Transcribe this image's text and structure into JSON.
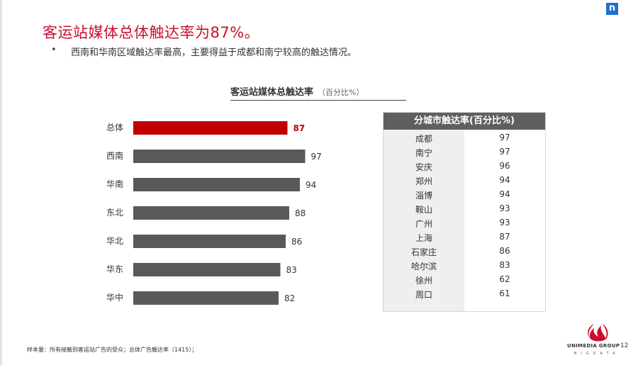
{
  "brand_badge": "n",
  "title": "客运站媒体总体触达率为87%。",
  "bullet_marker": "•",
  "bullet_text": "西南和华南区域触达率最高，主要得益于成都和南宁较高的触达情况。",
  "footnote": "样本量：所有接触到客运站广告的受众；总体广告触达率（1415）；",
  "logo": {
    "name": "UNIMEDIA GROUP",
    "sub": "BIGDATA"
  },
  "page_number": "12",
  "colors": {
    "highlight": "#c00000",
    "bar": "#595959",
    "title": "#c8102e"
  },
  "chart_data": [
    {
      "type": "bar",
      "orientation": "horizontal",
      "title": "客运站媒体总触达率",
      "unit": "（百分比%）",
      "categories": [
        "总体",
        "西南",
        "华南",
        "东北",
        "华北",
        "华东",
        "华中"
      ],
      "values": [
        87,
        97,
        94,
        88,
        86,
        83,
        82
      ],
      "highlight_index": 0,
      "grid": false
    },
    {
      "type": "table",
      "title": "分城市触达率(百分比%)",
      "rows": [
        {
          "city": "成都",
          "value": "97"
        },
        {
          "city": "南宁",
          "value": "97"
        },
        {
          "city": "安庆",
          "value": "96"
        },
        {
          "city": "郑州",
          "value": "94"
        },
        {
          "city": "淄博",
          "value": "94"
        },
        {
          "city": "鞍山",
          "value": "93"
        },
        {
          "city": "广州",
          "value": "93"
        },
        {
          "city": "上海",
          "value": "87"
        },
        {
          "city": "石家庄",
          "value": "86"
        },
        {
          "city": "哈尔滨",
          "value": "83"
        },
        {
          "city": "徐州",
          "value": "62"
        },
        {
          "city": "周口",
          "value": "61"
        }
      ]
    }
  ]
}
